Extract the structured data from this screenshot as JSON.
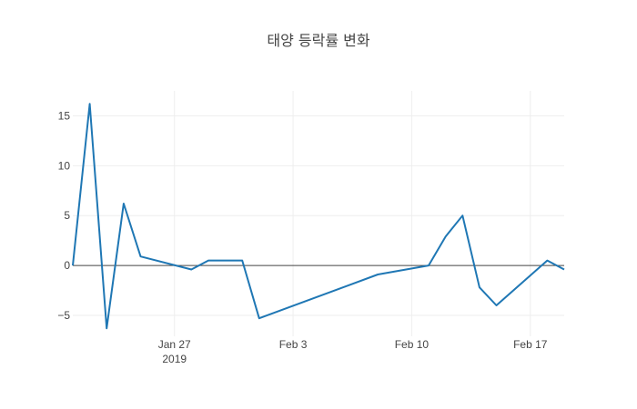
{
  "chart_data": {
    "type": "line",
    "title": "태양 등락률 변화",
    "xlabel": "",
    "ylabel": "",
    "x_ticks": [
      {
        "date": "2019-01-27",
        "label": "Jan 27",
        "sublabel": "2019"
      },
      {
        "date": "2019-02-03",
        "label": "Feb 3",
        "sublabel": ""
      },
      {
        "date": "2019-02-10",
        "label": "Feb 10",
        "sublabel": ""
      },
      {
        "date": "2019-02-17",
        "label": "Feb 17",
        "sublabel": ""
      }
    ],
    "y_ticks": [
      {
        "value": -5,
        "label": "−5"
      },
      {
        "value": 0,
        "label": "0"
      },
      {
        "value": 5,
        "label": "5"
      },
      {
        "value": 10,
        "label": "10"
      },
      {
        "value": 15,
        "label": "15"
      }
    ],
    "xlim": [
      "2019-01-21",
      "2019-02-19"
    ],
    "ylim": [
      -7.1,
      17.5
    ],
    "grid": true,
    "series": [
      {
        "color": "#1f77b4",
        "points": [
          {
            "x": "2019-01-21",
            "y": 0.0
          },
          {
            "x": "2019-01-22",
            "y": 16.2
          },
          {
            "x": "2019-01-23",
            "y": -6.3
          },
          {
            "x": "2019-01-24",
            "y": 6.2
          },
          {
            "x": "2019-01-25",
            "y": 0.9
          },
          {
            "x": "2019-01-28",
            "y": -0.4
          },
          {
            "x": "2019-01-29",
            "y": 0.5
          },
          {
            "x": "2019-01-31",
            "y": 0.5
          },
          {
            "x": "2019-02-01",
            "y": -5.3
          },
          {
            "x": "2019-02-08",
            "y": -0.9
          },
          {
            "x": "2019-02-11",
            "y": 0.0
          },
          {
            "x": "2019-02-12",
            "y": 2.9
          },
          {
            "x": "2019-02-13",
            "y": 5.0
          },
          {
            "x": "2019-02-14",
            "y": -2.2
          },
          {
            "x": "2019-02-15",
            "y": -4.0
          },
          {
            "x": "2019-02-18",
            "y": 0.5
          },
          {
            "x": "2019-02-19",
            "y": -0.4
          }
        ]
      }
    ]
  }
}
